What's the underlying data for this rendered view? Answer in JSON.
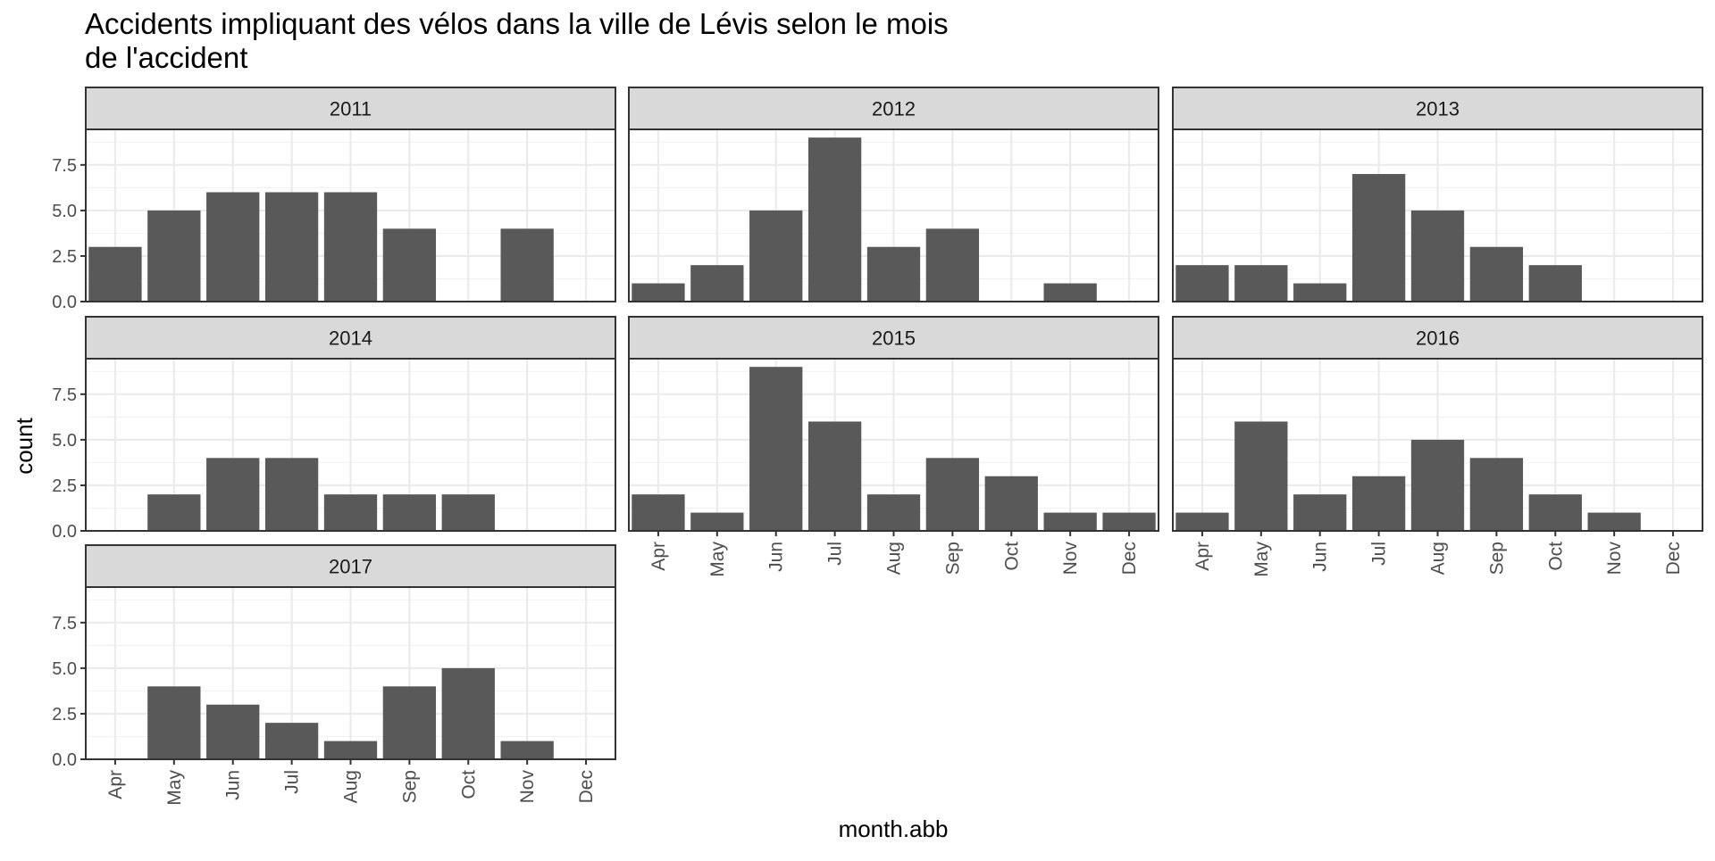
{
  "chart_data": {
    "type": "bar",
    "title_lines": [
      "Accidents impliquant des vélos dans la ville de Lévis selon le mois",
      "de l'accident"
    ],
    "xlabel": "month.abb",
    "ylabel": "count",
    "categories": [
      "Apr",
      "May",
      "Jun",
      "Jul",
      "Aug",
      "Sep",
      "Oct",
      "Nov",
      "Dec"
    ],
    "y_ticks": [
      "0.0",
      "2.5",
      "5.0",
      "7.5"
    ],
    "ylim": [
      0,
      9.45
    ],
    "grid": true,
    "bar_color": "#595959",
    "strip_fill": "#d9d9d9",
    "panels": [
      {
        "label": "2011",
        "values": [
          3,
          5,
          6,
          6,
          6,
          4,
          0,
          4,
          0
        ]
      },
      {
        "label": "2012",
        "values": [
          1,
          2,
          5,
          9,
          3,
          4,
          0,
          1,
          0
        ]
      },
      {
        "label": "2013",
        "values": [
          2,
          2,
          1,
          7,
          5,
          3,
          2,
          0,
          0
        ]
      },
      {
        "label": "2014",
        "values": [
          0,
          2,
          4,
          4,
          2,
          2,
          2,
          0,
          0
        ]
      },
      {
        "label": "2015",
        "values": [
          2,
          1,
          9,
          6,
          2,
          4,
          3,
          1,
          1
        ]
      },
      {
        "label": "2016",
        "values": [
          1,
          6,
          2,
          3,
          5,
          4,
          2,
          1,
          0
        ]
      },
      {
        "label": "2017",
        "values": [
          0,
          4,
          3,
          2,
          1,
          4,
          5,
          1,
          0
        ]
      }
    ]
  }
}
